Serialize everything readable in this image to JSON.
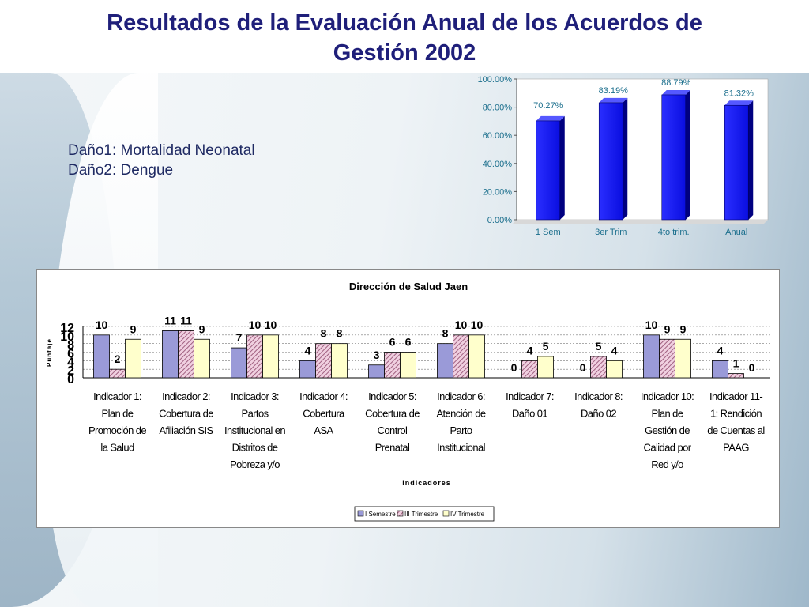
{
  "slide": {
    "title": "Resultados de la Evaluación Anual de los Acuerdos de Gestión 2002",
    "title_line1": "Resultados de la Evaluación Anual de los Acuerdos de",
    "title_line2": "Gestión 2002",
    "dano1": "Daño1: Mortalidad Neonatal",
    "dano2": "Daño2: Dengue",
    "title_color": "#1f1f7a"
  },
  "chart_data": [
    {
      "type": "bar",
      "categories": [
        "1 Sem",
        "3er Trim",
        "4to trim.",
        "Anual"
      ],
      "values": [
        70.27,
        83.19,
        88.79,
        81.32
      ],
      "value_labels": [
        "70.27%",
        "83.19%",
        "88.79%",
        "81.32%"
      ],
      "ylim": [
        0,
        100
      ],
      "yticks": [
        "0.00%",
        "20.00%",
        "40.00%",
        "60.00%",
        "80.00%",
        "100.00%"
      ],
      "bar_color": "#0a0ee0",
      "label_color": "#1a6e8c"
    },
    {
      "type": "bar",
      "title": "Dirección de Salud Jaen",
      "xlabel": "Indicadores",
      "ylabel": "Puntaje",
      "ylim": [
        0,
        12
      ],
      "yticks": [
        "0",
        "2",
        "4",
        "6",
        "8",
        "10",
        "12"
      ],
      "categories": [
        "Indicador 1: Plan de Promoción de la Salud",
        "Indicador 2: Cobertura de Afiliación SIS",
        "Indicador 3: Partos Institucional en Distritos de Pobreza y/o",
        "Indicador 4: Cobertura ASA",
        "Indicador 5: Cobertura de Control Prenatal",
        "Indicador 6: Atención de Parto Institucional",
        "Indicador 7: Daño 01",
        "Indicador 8: Daño 02",
        "Indicador 10: Plan de Gestión de Calidad por Red y/o",
        "Indicador 11-1: Rendición de Cuentas al PAAG"
      ],
      "category_lines": [
        [
          "Indicador 1:",
          "Plan de",
          "Promoción de",
          "la Salud"
        ],
        [
          "Indicador 2:",
          "Cobertura de",
          "Afiliación SIS"
        ],
        [
          "Indicador 3:",
          "Partos",
          "Institucional en",
          "Distritos de",
          "Pobreza y/o"
        ],
        [
          "Indicador 4:",
          "Cobertura",
          "ASA"
        ],
        [
          "Indicador 5:",
          "Cobertura de",
          "Control",
          "Prenatal"
        ],
        [
          "Indicador 6:",
          "Atención de",
          "Parto",
          "Institucional"
        ],
        [
          "Indicador 7:",
          "Daño 01"
        ],
        [
          "Indicador 8:",
          "Daño 02"
        ],
        [
          "Indicador 10:",
          "Plan de",
          "Gestión de",
          "Calidad por",
          "Red y/o"
        ],
        [
          "Indicador 11-",
          "1: Rendición",
          "de Cuentas al",
          "PAAG"
        ]
      ],
      "series": [
        {
          "name": "I Semestre",
          "values": [
            10,
            11,
            7,
            4,
            3,
            8,
            0,
            0,
            10,
            4
          ],
          "color": "#9a9ad8"
        },
        {
          "name": "III Trimestre",
          "values": [
            2,
            11,
            10,
            8,
            6,
            10,
            4,
            5,
            9,
            1
          ],
          "color": "#a06080"
        },
        {
          "name": "IV Trimestre",
          "values": [
            9,
            9,
            10,
            8,
            6,
            10,
            5,
            4,
            9,
            0
          ],
          "color": "#ffffcc"
        }
      ],
      "legend": "bottom"
    }
  ]
}
